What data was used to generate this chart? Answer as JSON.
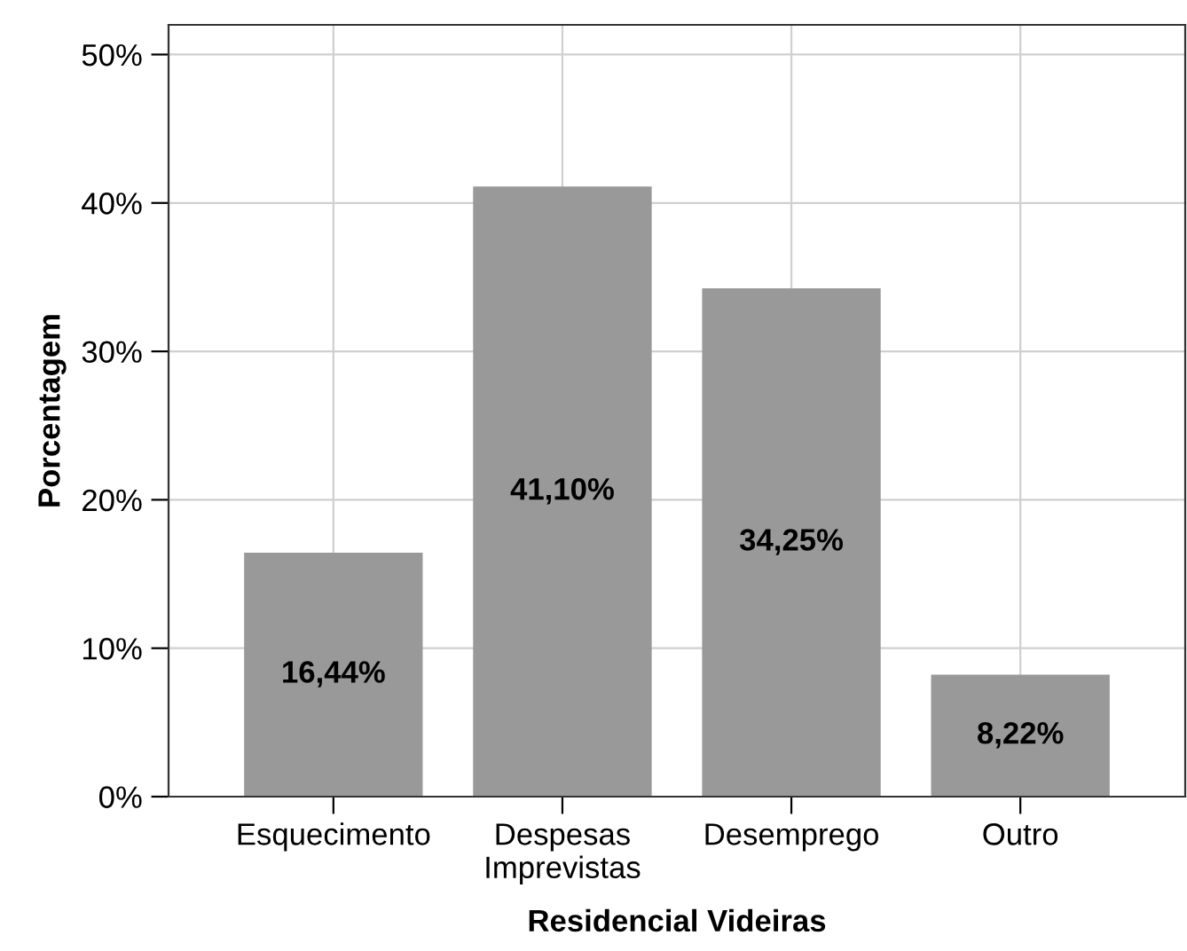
{
  "chart_data": {
    "type": "bar",
    "xlabel": "Residencial Videiras",
    "ylabel": "Porcentagem",
    "categories": [
      "Esquecimento",
      "Despesas\nImprevistas",
      "Desemprego",
      "Outro"
    ],
    "values": [
      16.44,
      41.1,
      34.25,
      8.22
    ],
    "value_labels": [
      "16,44%",
      "41,10%",
      "34,25%",
      "8,22%"
    ],
    "color": "#999999",
    "ylim": [
      0,
      52
    ],
    "yticks": [
      {
        "value": 0,
        "label": "0%"
      },
      {
        "value": 10,
        "label": "10%"
      },
      {
        "value": 20,
        "label": "20%"
      },
      {
        "value": 30,
        "label": "30%"
      },
      {
        "value": 40,
        "label": "40%"
      },
      {
        "value": 50,
        "label": "50%"
      }
    ],
    "grid": true
  }
}
